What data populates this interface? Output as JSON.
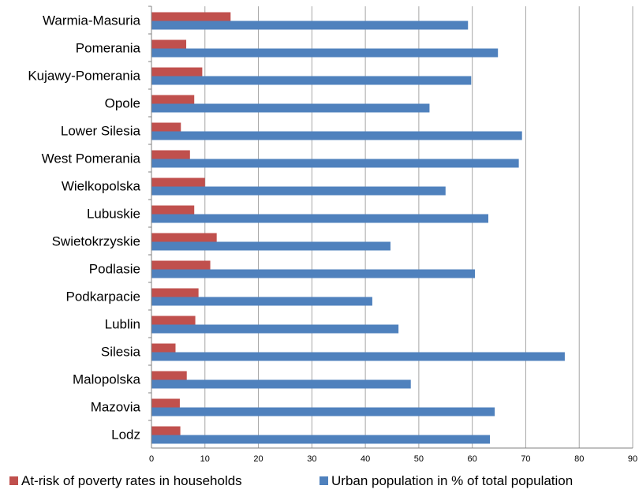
{
  "chart_data": {
    "type": "bar",
    "orientation": "horizontal",
    "title": "",
    "xlabel": "",
    "ylabel": "",
    "categories": [
      "Warmia-Masuria",
      "Pomerania",
      "Kujawy-Pomerania",
      "Opole",
      "Lower Silesia",
      "West Pomerania",
      "Wielkopolska",
      "Lubuskie",
      "Swietokrzyskie",
      "Podlasie",
      "Podkarpacie",
      "Lublin",
      "Silesia",
      "Malopolska",
      "Mazovia",
      "Lodz"
    ],
    "series": [
      {
        "name": "At-risk of poverty rates in households",
        "color": "#c0504d",
        "values": [
          14.8,
          6.5,
          9.5,
          8.0,
          5.5,
          7.2,
          10.0,
          8.0,
          12.2,
          11.0,
          8.8,
          8.2,
          4.5,
          6.6,
          5.3,
          5.4
        ]
      },
      {
        "name": "Urban population in % of total population",
        "color": "#4f81bd",
        "values": [
          59.2,
          64.8,
          59.8,
          52.0,
          69.3,
          68.7,
          55.0,
          63.0,
          44.7,
          60.5,
          41.3,
          46.2,
          77.3,
          48.5,
          64.2,
          63.3
        ]
      }
    ],
    "xlim": [
      0,
      90
    ],
    "xticks": [
      "0",
      "10",
      "20",
      "30",
      "40",
      "50",
      "60",
      "70",
      "80",
      "90"
    ],
    "grid": true,
    "legend_position": "bottom"
  }
}
